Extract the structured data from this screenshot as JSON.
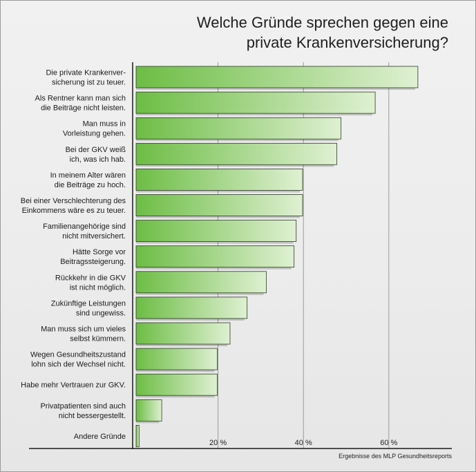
{
  "title_lines": [
    "Welche Gründe sprechen gegen eine",
    "private Krankenversicherung?"
  ],
  "source_note": "Ergebnisse des MLP Gesundheitsreports",
  "colors": {
    "bar_dark": "#6dbd45",
    "bar_light": "#dff0d2",
    "bar_stroke": "#2a3a22",
    "grid": "#9a9a9a",
    "axis": "#1a1a1a"
  },
  "chart_data": {
    "type": "bar",
    "orientation": "horizontal",
    "xlim": [
      0,
      73
    ],
    "xticks": [
      20,
      40,
      60
    ],
    "xtick_labels": [
      "20 %",
      "40 %",
      "60 %"
    ],
    "grid": true,
    "categories": [
      [
        "Die private Krankenver-",
        "sicherung ist zu teuer."
      ],
      [
        "Als Rentner kann man sich",
        "die Beiträge nicht leisten."
      ],
      [
        "Man muss in",
        "Vorleistung gehen."
      ],
      [
        "Bei der GKV weiß",
        "ich, was ich hab."
      ],
      [
        "In meinem Alter wären",
        "die Beiträge zu hoch."
      ],
      [
        "Bei einer Verschlechterung des",
        "Einkommens wäre es zu teuer."
      ],
      [
        "Familienangehörige sind",
        "nicht mitversichert."
      ],
      [
        "Hätte Sorge vor",
        "Beitragssteigerung."
      ],
      [
        "Rückkehr in die GKV",
        "ist nicht möglich."
      ],
      [
        "Zukünftige Leistungen",
        "sind ungewiss."
      ],
      [
        "Man muss sich um vieles",
        "selbst kümmern."
      ],
      [
        "Wegen Gesundheitszustand",
        "lohn sich der Wechsel nicht."
      ],
      [
        "Habe mehr Vertrauen zur GKV."
      ],
      [
        "Privatpatienten sind auch",
        "nicht bessergestellt."
      ],
      [
        "Andere Gründe"
      ]
    ],
    "values": [
      66,
      56,
      48,
      47,
      39,
      39,
      37.5,
      37,
      30.5,
      26,
      22,
      19,
      19,
      6,
      0.7
    ]
  }
}
